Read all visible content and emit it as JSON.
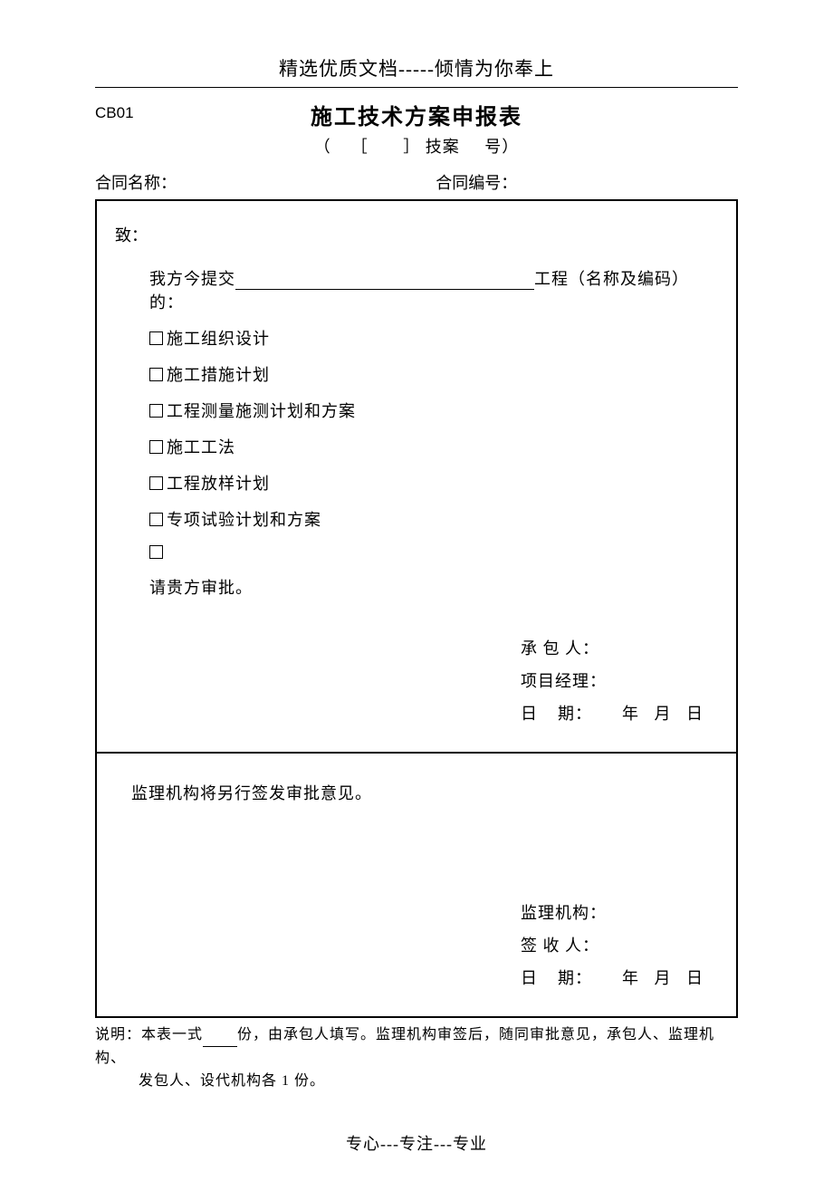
{
  "header": {
    "top_text": "精选优质文档-----倾情为你奉上",
    "form_code": "CB01",
    "title": "施工技术方案申报表",
    "subtitle_open": "（",
    "subtitle_bracket_l": "［",
    "subtitle_bracket_r": "］",
    "subtitle_mid": "技案",
    "subtitle_end": "号）"
  },
  "contract": {
    "name_label": "合同名称：",
    "num_label": "合同编号："
  },
  "body": {
    "to": "致：",
    "submit_prefix": "我方今提交",
    "submit_suffix": "工程（名称及编码）的：",
    "checkboxes": [
      "施工组织设计",
      "施工措施计划",
      "工程测量施测计划和方案",
      "施工工法",
      "工程放样计划",
      "专项试验计划和方案",
      ""
    ],
    "review": "请贵方审批。"
  },
  "sign_upper": {
    "contractor": "承 包 人：",
    "pm": "项目经理：",
    "date_label": "日",
    "date_label2": "期：",
    "year": "年",
    "month": "月",
    "day": "日"
  },
  "lower": {
    "text": "监理机构将另行签发审批意见。"
  },
  "sign_lower": {
    "org": "监理机构：",
    "receiver": "签 收 人：",
    "date_label": "日",
    "date_label2": "期：",
    "year": "年",
    "month": "月",
    "day": "日"
  },
  "note": {
    "line1_prefix": "说明：本表一式",
    "line1_suffix": "份，由承包人填写。监理机构审签后，随同审批意见，承包人、监理机构、",
    "line2": "发包人、设代机构各 1 份。"
  },
  "footer": "专心---专注---专业"
}
